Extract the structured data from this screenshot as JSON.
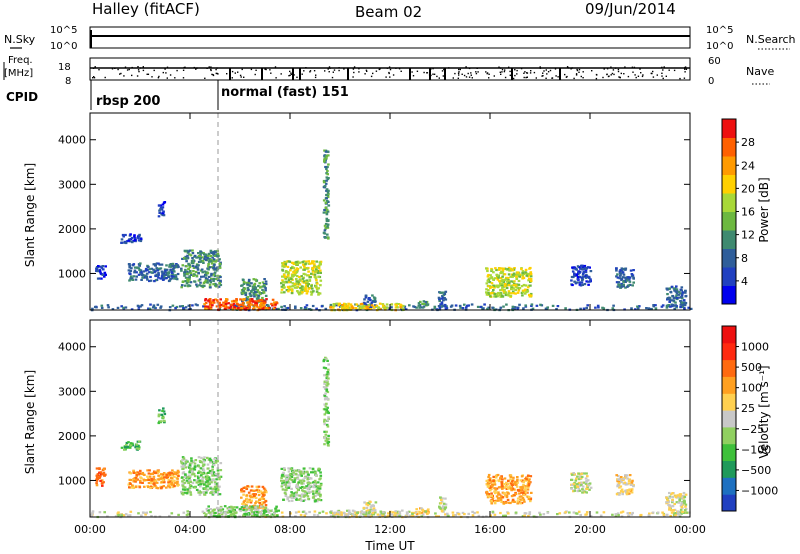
{
  "header": {
    "site": "Halley (fitACF)",
    "beam": "Beam 02",
    "date": "09/Jun/2014"
  },
  "nsky_panel": {
    "left_label": "N.Sky",
    "right_label": "N.Search",
    "left_ticks": [
      "10^5",
      "10^0"
    ],
    "right_ticks": [
      "10^5",
      "10^0"
    ]
  },
  "freq_panel": {
    "left_label_1": "Freq.",
    "left_label_2": "[MHz]",
    "right_label": "Nave",
    "left_ticks": [
      "18",
      "8"
    ],
    "right_ticks": [
      "60",
      "0"
    ]
  },
  "cpid": {
    "label": "CPID",
    "segments": [
      {
        "name": "rbsp 200",
        "start_hour": 0
      },
      {
        "name": "normal (fast) 151",
        "start_hour": 5.0
      }
    ]
  },
  "colors": {
    "dashed_marker": "#999999",
    "grid_frame": "#000000"
  },
  "chart_data": [
    {
      "type": "heatmap",
      "name": "power",
      "ylabel": "Slant Range [km]",
      "xlabel": "",
      "xlim_hours": [
        0,
        24
      ],
      "ylim": [
        180,
        4600
      ],
      "yticks": [
        "1000",
        "2000",
        "3000",
        "4000"
      ],
      "colorbar": {
        "label": "Power [dB]",
        "ticks": [
          "4",
          "8",
          "12",
          "16",
          "20",
          "24",
          "28"
        ],
        "colors": [
          "#0000ee",
          "#2040c0",
          "#2f5e9a",
          "#3f8a70",
          "#6cb840",
          "#a8d838",
          "#ffd000",
          "#ff9a00",
          "#ff6000",
          "#ee1010"
        ]
      },
      "blobs": [
        {
          "t": [
            2.7,
            2.95
          ],
          "r": [
            2300,
            2650
          ],
          "level": 1
        },
        {
          "t": [
            1.2,
            2.0
          ],
          "r": [
            1700,
            1900
          ],
          "level": 1
        },
        {
          "t": [
            0.2,
            0.6
          ],
          "r": [
            900,
            1200
          ],
          "level": 1
        },
        {
          "t": [
            1.5,
            3.5
          ],
          "r": [
            850,
            1250
          ],
          "level": 2
        },
        {
          "t": [
            3.6,
            5.2
          ],
          "r": [
            700,
            1550
          ],
          "level": 3
        },
        {
          "t": [
            6.0,
            7.0
          ],
          "r": [
            350,
            900
          ],
          "level": 3
        },
        {
          "t": [
            7.6,
            9.2
          ],
          "r": [
            550,
            1300
          ],
          "level": 5
        },
        {
          "t": [
            9.3,
            9.5
          ],
          "r": [
            1800,
            3800
          ],
          "level": 3
        },
        {
          "t": [
            10.9,
            11.4
          ],
          "r": [
            250,
            550
          ],
          "level": 2
        },
        {
          "t": [
            13.0,
            13.6
          ],
          "r": [
            250,
            400
          ],
          "level": 3
        },
        {
          "t": [
            13.9,
            14.2
          ],
          "r": [
            300,
            650
          ],
          "level": 2
        },
        {
          "t": [
            15.8,
            17.6
          ],
          "r": [
            500,
            1150
          ],
          "level": 5
        },
        {
          "t": [
            19.2,
            20.0
          ],
          "r": [
            750,
            1200
          ],
          "level": 1
        },
        {
          "t": [
            21.0,
            21.7
          ],
          "r": [
            700,
            1150
          ],
          "level": 2
        },
        {
          "t": [
            23.0,
            23.8
          ],
          "r": [
            250,
            750
          ],
          "level": 2
        },
        {
          "t": [
            0.0,
            24.0
          ],
          "r": [
            200,
            330
          ],
          "level": 2
        },
        {
          "t": [
            4.5,
            7.5
          ],
          "r": [
            200,
            450
          ],
          "level": 8
        },
        {
          "t": [
            9.5,
            12.5
          ],
          "r": [
            200,
            350
          ],
          "level": 6
        }
      ]
    },
    {
      "type": "heatmap",
      "name": "velocity",
      "ylabel": "Slant Range [km]",
      "xlabel": "Time UT",
      "xlim_hours": [
        0,
        24
      ],
      "ylim": [
        180,
        4600
      ],
      "xticks": [
        "00:00",
        "04:00",
        "08:00",
        "12:00",
        "16:00",
        "20:00",
        "00:00"
      ],
      "yticks": [
        "1000",
        "2000",
        "3000",
        "4000"
      ],
      "colorbar": {
        "label": "Velocity [m s⁻¹]",
        "ticks": [
          "1000",
          "500",
          "100",
          "25",
          "−25",
          "−100",
          "−500",
          "−1000"
        ],
        "colors": [
          "#2040c0",
          "#1e70c0",
          "#1f9a5a",
          "#3ec03a",
          "#90d060",
          "#c8c8c8",
          "#ffd050",
          "#ffa020",
          "#ff6a10",
          "#ff2a10",
          "#ee1010"
        ]
      },
      "blobs": [
        {
          "t": [
            2.7,
            2.95
          ],
          "r": [
            2300,
            2650
          ],
          "level": 3
        },
        {
          "t": [
            1.2,
            2.0
          ],
          "r": [
            1700,
            1900
          ],
          "level": 3
        },
        {
          "t": [
            0.2,
            0.6
          ],
          "r": [
            900,
            1300
          ],
          "level": 8
        },
        {
          "t": [
            1.5,
            3.5
          ],
          "r": [
            850,
            1250
          ],
          "level": 7
        },
        {
          "t": [
            3.6,
            5.2
          ],
          "r": [
            700,
            1550
          ],
          "level": 4
        },
        {
          "t": [
            6.0,
            7.0
          ],
          "r": [
            350,
            900
          ],
          "level": 7
        },
        {
          "t": [
            7.6,
            9.2
          ],
          "r": [
            550,
            1300
          ],
          "level": 4
        },
        {
          "t": [
            9.3,
            9.5
          ],
          "r": [
            1800,
            3800
          ],
          "level": 4
        },
        {
          "t": [
            10.9,
            11.4
          ],
          "r": [
            250,
            550
          ],
          "level": 5
        },
        {
          "t": [
            13.0,
            13.6
          ],
          "r": [
            250,
            400
          ],
          "level": 6
        },
        {
          "t": [
            13.9,
            14.2
          ],
          "r": [
            300,
            650
          ],
          "level": 5
        },
        {
          "t": [
            15.8,
            17.6
          ],
          "r": [
            500,
            1150
          ],
          "level": 7
        },
        {
          "t": [
            19.2,
            20.0
          ],
          "r": [
            750,
            1200
          ],
          "level": 5
        },
        {
          "t": [
            21.0,
            21.7
          ],
          "r": [
            700,
            1150
          ],
          "level": 6
        },
        {
          "t": [
            23.0,
            23.8
          ],
          "r": [
            250,
            750
          ],
          "level": 5
        },
        {
          "t": [
            0.0,
            24.0
          ],
          "r": [
            200,
            330
          ],
          "level": 5
        },
        {
          "t": [
            4.5,
            7.5
          ],
          "r": [
            200,
            450
          ],
          "level": 4
        },
        {
          "t": [
            9.5,
            12.5
          ],
          "r": [
            200,
            350
          ],
          "level": 5
        }
      ]
    }
  ]
}
